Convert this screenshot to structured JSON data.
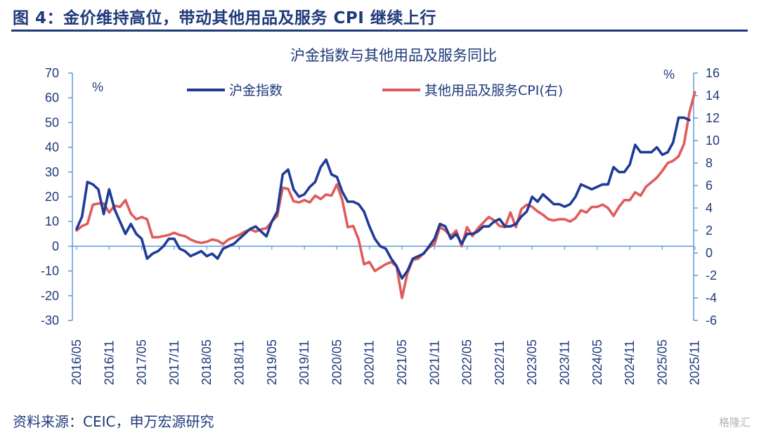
{
  "header": {
    "figure_title": "图 4：金价维持高位，带动其他用品及服务 CPI 继续上行"
  },
  "footer": {
    "source": "资料来源：CEIC，申万宏源研究",
    "watermark": "格隆汇"
  },
  "colors": {
    "gold_series": "#1f3b96",
    "cpi_series": "#e05b5b",
    "text": "#1f3a7a"
  },
  "chart_data": {
    "type": "line",
    "title": "沪金指数与其他用品及服务同比",
    "left_unit": "%",
    "right_unit": "%",
    "left_ylim": [
      -30,
      70
    ],
    "left_ticks": [
      -30,
      -20,
      -10,
      0,
      10,
      20,
      30,
      40,
      50,
      60,
      70
    ],
    "right_ylim": [
      -6,
      16
    ],
    "right_ticks": [
      -6,
      -4,
      -2,
      0,
      2,
      4,
      6,
      8,
      10,
      12,
      14,
      16
    ],
    "x_tick_labels": [
      "2016/05",
      "2016/11",
      "2017/05",
      "2017/11",
      "2018/05",
      "2018/11",
      "2019/05",
      "2019/11",
      "2020/05",
      "2020/11",
      "2021/05",
      "2021/11",
      "2022/05",
      "2022/11",
      "2023/05",
      "2023/11",
      "2024/05",
      "2024/11",
      "2025/05",
      "2025/11"
    ],
    "x_start": "2016/05",
    "x_end": "2025/12",
    "series": [
      {
        "name": "沪金指数",
        "axis": "left",
        "values": [
          7,
          12,
          26,
          25,
          23,
          13,
          23,
          15,
          10,
          5,
          9,
          5,
          3,
          -5,
          -3,
          -2,
          0,
          3,
          3,
          -1,
          -2,
          -4,
          -3,
          -2,
          -4,
          -3,
          -5,
          -1,
          0,
          1,
          3,
          5,
          7,
          8,
          6,
          4,
          10,
          14,
          29,
          31,
          23,
          20,
          21,
          24,
          26,
          32,
          35,
          29,
          28,
          22,
          18,
          18,
          17,
          14,
          8,
          3,
          0,
          -1,
          -5,
          -8,
          -13,
          -10,
          -5,
          -4,
          -3,
          0,
          3,
          9,
          8,
          3,
          5,
          1,
          5,
          5,
          6,
          8,
          8,
          10,
          11,
          8,
          8,
          9,
          12,
          14,
          20,
          18,
          21,
          19,
          17,
          17,
          16,
          17,
          20,
          25,
          24,
          23,
          24,
          25,
          25,
          32,
          30,
          30,
          33,
          41,
          38,
          38,
          38,
          40,
          37,
          38,
          42,
          52,
          52,
          51
        ],
        "right_scale_equivalent_note": ""
      },
      {
        "name": "其他用品及服务CPI(右)",
        "axis": "right",
        "values": [
          2.0,
          2.4,
          2.6,
          4.3,
          4.4,
          4.4,
          3.6,
          4.2,
          4.1,
          4.7,
          3.5,
          3.0,
          3.2,
          3.0,
          1.4,
          1.4,
          1.5,
          1.6,
          1.8,
          1.6,
          1.5,
          1.2,
          1.0,
          0.9,
          1.0,
          1.2,
          1.1,
          0.8,
          1.2,
          1.4,
          1.6,
          1.9,
          2.1,
          1.9,
          2.1,
          2.2,
          2.8,
          3.3,
          5.8,
          5.7,
          4.6,
          4.5,
          4.7,
          4.5,
          5.1,
          4.8,
          5.2,
          5.1,
          6.1,
          4.7,
          2.3,
          2.4,
          1.2,
          -1.0,
          -0.8,
          -1.6,
          -1.3,
          -1.0,
          -0.8,
          -1.2,
          -4.0,
          -1.8,
          -0.6,
          -0.5,
          0.0,
          0.5,
          0.8,
          2.3,
          2.0,
          1.5,
          2.0,
          0.6,
          2.3,
          1.5,
          2.2,
          2.7,
          3.2,
          2.9,
          2.4,
          2.3,
          3.6,
          2.3,
          3.9,
          4.3,
          4.1,
          3.7,
          3.4,
          3.0,
          2.9,
          3.0,
          3.0,
          2.8,
          3.1,
          3.8,
          3.6,
          4.1,
          4.1,
          4.3,
          4.0,
          3.3,
          4.1,
          4.7,
          4.7,
          5.4,
          5.1,
          5.9,
          6.3,
          6.7,
          7.3,
          8.0,
          8.2,
          8.6,
          9.7,
          12.5,
          14.3
        ]
      }
    ]
  }
}
